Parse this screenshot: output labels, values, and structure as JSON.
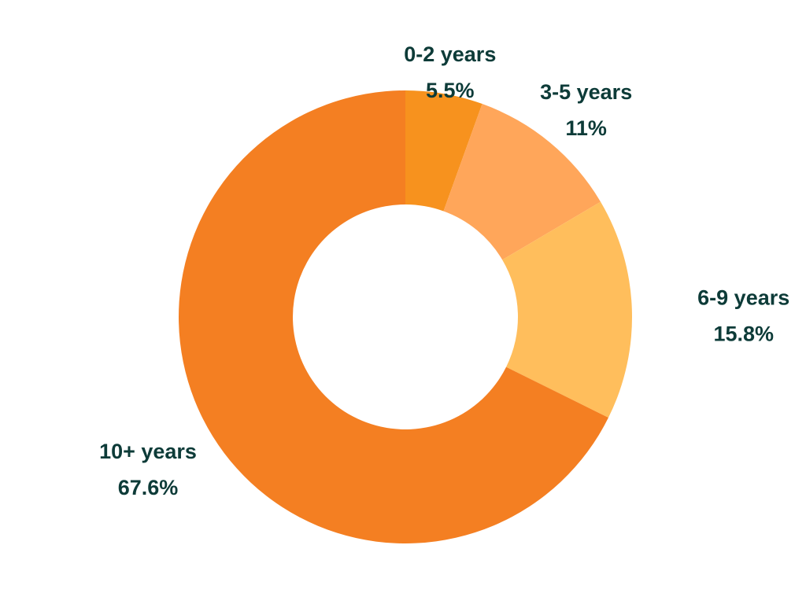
{
  "chart_data": {
    "type": "pie",
    "style": "donut",
    "start": "top",
    "direction": "clockwise",
    "slices": [
      {
        "label": "0-2 years",
        "value": 5.5,
        "value_label": "5.5%",
        "color": "#F7921E"
      },
      {
        "label": "3-5 years",
        "value": 11,
        "value_label": "11%",
        "color": "#FFA65A"
      },
      {
        "label": "6-9 years",
        "value": 15.8,
        "value_label": "15.8%",
        "color": "#FFBE5C"
      },
      {
        "label": "10+ years",
        "value": 67.6,
        "value_label": "67.6%",
        "color": "#F47F22"
      }
    ]
  },
  "colors": {
    "label_text": "#0d3b38",
    "background": "#ffffff"
  }
}
